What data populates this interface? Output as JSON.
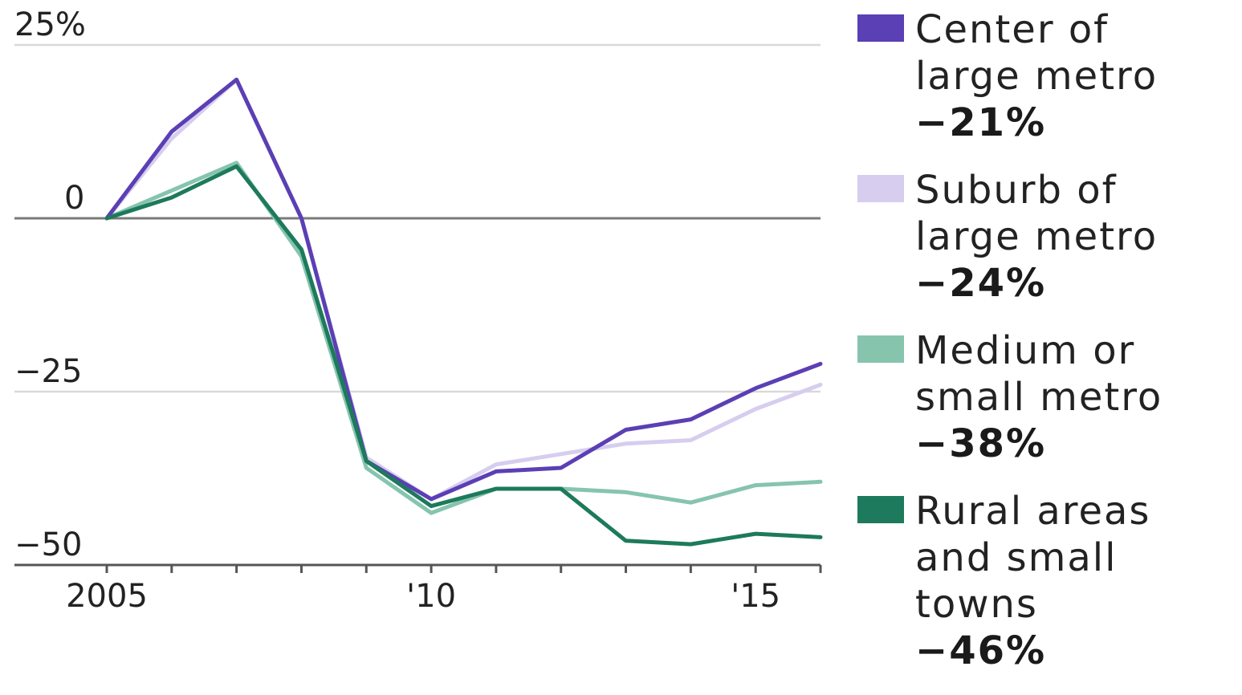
{
  "chart_data": {
    "type": "line",
    "x": [
      2005,
      2006,
      2007,
      2008,
      2009,
      2010,
      2011,
      2012,
      2013,
      2014,
      2015,
      2016
    ],
    "x_tick_values": [
      2005,
      2010,
      2015
    ],
    "x_tick_labels": [
      "2005",
      "'10",
      "'15"
    ],
    "y_tick_values": [
      25,
      0,
      -25,
      -50
    ],
    "y_tick_labels": [
      "25%",
      "0",
      "−25",
      "−50"
    ],
    "ylim": [
      -50,
      25
    ],
    "xlim": [
      2005,
      2016
    ],
    "grid": true,
    "legend_position": "right",
    "series": [
      {
        "name": "Center of\nlarge metro",
        "color": "#5b3fb4",
        "end_label": "−21%",
        "values": [
          0,
          12.5,
          20,
          0,
          -35,
          -40.5,
          -36.5,
          -36,
          -30.5,
          -29,
          -24.5,
          -21
        ]
      },
      {
        "name": "Suburb of\nlarge metro",
        "color": "#d6cdef",
        "end_label": "−24%",
        "values": [
          0,
          11.5,
          20,
          0,
          -34.5,
          -40.5,
          -35.5,
          -34,
          -32.5,
          -32,
          -27.5,
          -24
        ]
      },
      {
        "name": "Medium or\nsmall metro",
        "color": "#86c4ae",
        "end_label": "−38%",
        "values": [
          0,
          4,
          8,
          -5.5,
          -36,
          -42.5,
          -39,
          -39,
          -39.5,
          -41,
          -38.5,
          -38
        ]
      },
      {
        "name": "Rural areas\nand small\ntowns",
        "color": "#1d7a5c",
        "end_label": "−46%",
        "values": [
          0,
          3,
          7.5,
          -4.5,
          -35,
          -41.5,
          -39,
          -39,
          -46.5,
          -47,
          -45.5,
          -46
        ]
      }
    ]
  }
}
